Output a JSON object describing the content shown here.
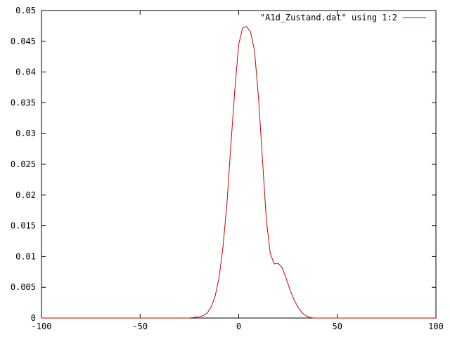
{
  "chart_data": {
    "type": "line",
    "xlim": [
      -100,
      100
    ],
    "ylim": [
      0,
      0.05
    ],
    "x_ticks": [
      -100,
      -50,
      0,
      50,
      100
    ],
    "y_ticks": [
      0,
      0.005,
      0.01,
      0.015,
      0.02,
      0.025,
      0.03,
      0.035,
      0.04,
      0.045,
      0.05
    ],
    "x_tick_labels": [
      "-100",
      "-50",
      "0",
      "50",
      "100"
    ],
    "y_tick_labels": [
      "0",
      "0.005",
      "0.01",
      "0.015",
      "0.02",
      "0.025",
      "0.03",
      "0.035",
      "0.04",
      "0.045",
      "0.05"
    ],
    "grid": false,
    "legend_position": "top-right",
    "series": [
      {
        "name": "\"A1d_Zustand.dat\" using 1:2",
        "color": "#cc0000",
        "x": [
          -100,
          -25,
          -20,
          -18,
          -16,
          -14,
          -12,
          -10,
          -8,
          -6,
          -4,
          -2,
          0,
          2,
          4,
          6,
          8,
          10,
          12,
          14,
          16,
          18,
          20,
          22,
          24,
          26,
          28,
          30,
          32,
          34,
          36,
          38,
          40,
          100
        ],
        "y": [
          0,
          0,
          0.0002,
          0.0004,
          0.0008,
          0.0018,
          0.0035,
          0.0065,
          0.0115,
          0.0185,
          0.028,
          0.037,
          0.0445,
          0.0472,
          0.0474,
          0.0465,
          0.0435,
          0.036,
          0.026,
          0.016,
          0.0105,
          0.0088,
          0.0089,
          0.0082,
          0.0065,
          0.0046,
          0.003,
          0.0018,
          0.0009,
          0.0004,
          0.0001,
          0,
          0,
          0
        ]
      }
    ]
  }
}
